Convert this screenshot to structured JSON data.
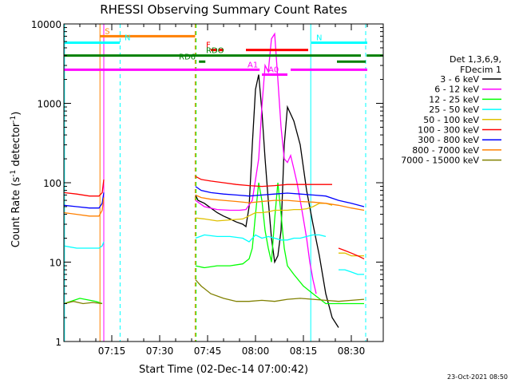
{
  "chart_data": {
    "type": "line",
    "title": "RHESSI Observing Summary Count Rates",
    "xlabel": "Start Time (02-Dec-14 07:00:42)",
    "ylabel_main": "Count Rate (s",
    "ylabel_exp": "-1",
    "ylabel_tail": " detector",
    "ylabel_end": ")",
    "y_scale": "log",
    "x_range_min": [
      0,
      100
    ],
    "y_range": [
      1,
      10000
    ],
    "x_ticks": [
      {
        "m": 15,
        "label": "07:15"
      },
      {
        "m": 30,
        "label": "07:30"
      },
      {
        "m": 45,
        "label": "07:45"
      },
      {
        "m": 60,
        "label": "08:00"
      },
      {
        "m": 75,
        "label": "08:15"
      },
      {
        "m": 90,
        "label": "08:30"
      }
    ],
    "y_ticks": [
      {
        "v": 1,
        "label": "1"
      },
      {
        "v": 10,
        "label": "10"
      },
      {
        "v": 100,
        "label": "100"
      },
      {
        "v": 1000,
        "label": "1000"
      },
      {
        "v": 10000,
        "label": "10000"
      }
    ],
    "legend": {
      "header": [
        "Det 1,3,6,9,",
        "FDecim 1"
      ],
      "position": "right"
    },
    "series": [
      {
        "name": "3 - 6 keV",
        "color": "#000000",
        "segments": [
          [
            [
              41.2,
              70
            ],
            [
              42,
              60
            ],
            [
              44,
              55
            ],
            [
              46,
              48
            ],
            [
              48,
              42
            ],
            [
              50,
              38
            ],
            [
              52,
              35
            ],
            [
              54,
              32
            ],
            [
              56,
              30
            ],
            [
              57,
              28
            ],
            [
              58,
              50
            ],
            [
              59,
              300
            ],
            [
              60,
              1500
            ],
            [
              61,
              2300
            ],
            [
              62,
              800
            ],
            [
              63,
              200
            ],
            [
              64,
              60
            ],
            [
              65,
              20
            ],
            [
              66,
              10
            ],
            [
              67,
              12
            ],
            [
              68,
              25
            ],
            [
              69,
              300
            ],
            [
              70,
              900
            ],
            [
              72,
              600
            ],
            [
              74,
              300
            ],
            [
              76,
              80
            ],
            [
              78,
              30
            ],
            [
              80,
              12
            ],
            [
              82,
              4
            ],
            [
              84,
              2
            ],
            [
              86,
              1.5
            ]
          ]
        ]
      },
      {
        "name": "6 - 12 keV",
        "color": "#ff00ff",
        "segments": [
          [
            [
              41.2,
              60
            ],
            [
              44,
              50
            ],
            [
              48,
              46
            ],
            [
              52,
              45
            ],
            [
              55,
              45
            ],
            [
              57,
              46
            ],
            [
              59,
              60
            ],
            [
              61,
              200
            ],
            [
              62,
              900
            ],
            [
              63,
              3000
            ],
            [
              64,
              2500
            ],
            [
              65,
              6500
            ],
            [
              66,
              7500
            ],
            [
              67,
              2000
            ],
            [
              68,
              500
            ],
            [
              69,
              200
            ],
            [
              70,
              180
            ],
            [
              71,
              220
            ],
            [
              72,
              150
            ],
            [
              73,
              100
            ],
            [
              74,
              60
            ],
            [
              75,
              35
            ],
            [
              76,
              20
            ],
            [
              77,
              10
            ],
            [
              78,
              6
            ],
            [
              79,
              4
            ]
          ]
        ]
      },
      {
        "name": "12 - 25 keV",
        "color": "#00ff00",
        "segments": [
          [
            [
              0,
              3
            ],
            [
              5,
              3.5
            ],
            [
              10,
              3.2
            ],
            [
              12,
              3
            ]
          ],
          [
            [
              41.2,
              9
            ],
            [
              44,
              8.5
            ],
            [
              48,
              9
            ],
            [
              52,
              9
            ],
            [
              56,
              9.5
            ],
            [
              58,
              11
            ],
            [
              59,
              15
            ],
            [
              60,
              40
            ],
            [
              61,
              100
            ],
            [
              62,
              60
            ],
            [
              63,
              25
            ],
            [
              64,
              15
            ],
            [
              65,
              10
            ],
            [
              66,
              35
            ],
            [
              67,
              100
            ],
            [
              68,
              40
            ],
            [
              69,
              15
            ],
            [
              70,
              9
            ],
            [
              72,
              7
            ],
            [
              75,
              5
            ],
            [
              78,
              4
            ],
            [
              82,
              3
            ],
            [
              86,
              3
            ],
            [
              90,
              3
            ],
            [
              94,
              3
            ]
          ]
        ]
      },
      {
        "name": "25 - 50 keV",
        "color": "#00ffff",
        "segments": [
          [
            [
              0,
              16
            ],
            [
              4,
              15
            ],
            [
              8,
              15
            ],
            [
              11,
              15
            ],
            [
              12,
              16
            ],
            [
              12.5,
              18
            ]
          ],
          [
            [
              41.2,
              20
            ],
            [
              44,
              22
            ],
            [
              48,
              21
            ],
            [
              52,
              21
            ],
            [
              56,
              20
            ],
            [
              58,
              18
            ],
            [
              60,
              22
            ],
            [
              62,
              20
            ],
            [
              64,
              21
            ],
            [
              66,
              20
            ],
            [
              68,
              19
            ],
            [
              70,
              19
            ],
            [
              72,
              20
            ],
            [
              74,
              20
            ],
            [
              76,
              21
            ],
            [
              78,
              22
            ],
            [
              80,
              22
            ],
            [
              82,
              21
            ]
          ],
          [
            [
              86,
              8
            ],
            [
              88,
              8
            ],
            [
              90,
              7.5
            ],
            [
              92,
              7
            ],
            [
              94,
              7
            ]
          ]
        ]
      },
      {
        "name": "50 - 100 keV",
        "color": "#e0c000",
        "segments": [
          [
            [
              41.2,
              36
            ],
            [
              44,
              35
            ],
            [
              48,
              33
            ],
            [
              52,
              34
            ],
            [
              56,
              35
            ],
            [
              60,
              42
            ],
            [
              62,
              42
            ],
            [
              64,
              43
            ],
            [
              66,
              45
            ],
            [
              68,
              45
            ],
            [
              70,
              45
            ],
            [
              72,
              46
            ],
            [
              74,
              46
            ],
            [
              76,
              47
            ],
            [
              78,
              50
            ],
            [
              80,
              55
            ],
            [
              82,
              55
            ],
            [
              84,
              52
            ]
          ],
          [
            [
              86,
              13
            ],
            [
              88,
              13
            ],
            [
              90,
              12
            ],
            [
              92,
              12
            ],
            [
              94,
              12
            ]
          ]
        ]
      },
      {
        "name": "100 - 300 keV",
        "color": "#ff0000",
        "segments": [
          [
            [
              0,
              75
            ],
            [
              4,
              72
            ],
            [
              8,
              68
            ],
            [
              11,
              68
            ],
            [
              12,
              75
            ],
            [
              12.5,
              110
            ]
          ],
          [
            [
              41.2,
              120
            ],
            [
              43,
              110
            ],
            [
              46,
              105
            ],
            [
              50,
              100
            ],
            [
              54,
              95
            ],
            [
              58,
              92
            ],
            [
              62,
              90
            ],
            [
              66,
              92
            ],
            [
              70,
              95
            ],
            [
              74,
              95
            ],
            [
              78,
              95
            ],
            [
              82,
              95
            ],
            [
              84,
              95
            ]
          ],
          [
            [
              86,
              15
            ],
            [
              88,
              14
            ],
            [
              90,
              13
            ],
            [
              92,
              12
            ],
            [
              94,
              11
            ]
          ]
        ]
      },
      {
        "name": "300 - 800 keV",
        "color": "#0000ff",
        "segments": [
          [
            [
              0,
              52
            ],
            [
              4,
              50
            ],
            [
              8,
              48
            ],
            [
              11,
              48
            ],
            [
              12,
              55
            ],
            [
              12.5,
              75
            ]
          ],
          [
            [
              41.2,
              90
            ],
            [
              43,
              80
            ],
            [
              46,
              75
            ],
            [
              50,
              72
            ],
            [
              54,
              70
            ],
            [
              58,
              68
            ],
            [
              62,
              70
            ],
            [
              66,
              72
            ],
            [
              70,
              74
            ],
            [
              74,
              72
            ],
            [
              78,
              70
            ],
            [
              82,
              68
            ],
            [
              86,
              60
            ],
            [
              90,
              55
            ],
            [
              94,
              50
            ]
          ]
        ]
      },
      {
        "name": "800 - 7000 keV",
        "color": "#ff8000",
        "segments": [
          [
            [
              0,
              42
            ],
            [
              4,
              40
            ],
            [
              8,
              38
            ],
            [
              11,
              38
            ],
            [
              12,
              45
            ],
            [
              12.5,
              65
            ]
          ],
          [
            [
              41.2,
              70
            ],
            [
              43,
              65
            ],
            [
              46,
              62
            ],
            [
              50,
              60
            ],
            [
              54,
              58
            ],
            [
              58,
              56
            ],
            [
              62,
              58
            ],
            [
              66,
              60
            ],
            [
              70,
              60
            ],
            [
              74,
              58
            ],
            [
              78,
              57
            ],
            [
              82,
              55
            ],
            [
              86,
              52
            ],
            [
              90,
              48
            ],
            [
              94,
              45
            ]
          ]
        ]
      },
      {
        "name": "7000 - 15000 keV",
        "color": "#808000",
        "segments": [
          [
            [
              0,
              3
            ],
            [
              3,
              3.2
            ],
            [
              6,
              3
            ],
            [
              9,
              3.1
            ],
            [
              12,
              3
            ]
          ],
          [
            [
              41.2,
              6
            ],
            [
              43,
              5
            ],
            [
              46,
              4
            ],
            [
              50,
              3.5
            ],
            [
              54,
              3.2
            ],
            [
              58,
              3.2
            ],
            [
              62,
              3.3
            ],
            [
              66,
              3.2
            ],
            [
              70,
              3.4
            ],
            [
              74,
              3.5
            ],
            [
              78,
              3.4
            ],
            [
              82,
              3.3
            ],
            [
              86,
              3.2
            ],
            [
              90,
              3.3
            ],
            [
              94,
              3.4
            ]
          ]
        ]
      }
    ],
    "flag_bars": [
      {
        "label": "S",
        "color": "#ff8000",
        "x": [
          11.3,
          41.1
        ],
        "y": 7000
      },
      {
        "label": "N",
        "color": "#00ffff",
        "x": [
          0,
          17.5
        ],
        "y": 5800,
        "label_at": 19
      },
      {
        "label": "N",
        "color": "#00ffff",
        "x": [
          77.5,
          95
        ],
        "y": 5800,
        "label_at": null
      },
      {
        "label": "F",
        "color": "#ff0000",
        "x": [
          46,
          48
        ],
        "y": 4700,
        "label_at": 44.5
      },
      {
        "label": "",
        "color": "#ff0000",
        "x": [
          48.5,
          50
        ],
        "y": 4700
      },
      {
        "label": "",
        "color": "#ff0000",
        "x": [
          57,
          76.5
        ],
        "y": 4700
      },
      {
        "label": "RDO",
        "color": "#008000",
        "x": [
          0,
          93
        ],
        "y": 4000,
        "label_at": 44.5
      },
      {
        "label": "RD6",
        "color": "#008000",
        "x": [
          42.3,
          44.3
        ],
        "y": 3350,
        "label_at": 36
      },
      {
        "label": "",
        "color": "#008000",
        "x": [
          85.5,
          94.5
        ],
        "y": 3350
      },
      {
        "label": "",
        "color": "#008000",
        "x": [
          94.8,
          100
        ],
        "y": 4000
      },
      {
        "label": "A1",
        "color": "#ff00ff",
        "x": [
          0,
          61.3
        ],
        "y": 2650,
        "label_at": 57.5
      },
      {
        "label": "",
        "color": "#ff00ff",
        "x": [
          71,
          95
        ],
        "y": 2650
      },
      {
        "label": "A0",
        "color": "#ff00ff",
        "x": [
          62,
          70
        ],
        "y": 2300,
        "label_at": 64
      }
    ],
    "vlines": [
      {
        "x": 11.3,
        "color": "#ff8000",
        "style": "solid"
      },
      {
        "x": 12.5,
        "color": "#ff00ff",
        "style": "solid"
      },
      {
        "x": 17.6,
        "color": "#00ffff",
        "style": "dashed"
      },
      {
        "x": 41.1,
        "color": "#ff8000",
        "style": "dashed"
      },
      {
        "x": 41.4,
        "color": "#00ff00",
        "style": "dashed"
      },
      {
        "x": 77.3,
        "color": "#00ffff",
        "style": "solid"
      },
      {
        "x": 94.5,
        "color": "#00ffff",
        "style": "dashed"
      },
      {
        "x": 0.2,
        "color": "#00ffff",
        "style": "solid"
      }
    ]
  },
  "footer": {
    "timestamp": "23-Oct-2021 08:50"
  }
}
